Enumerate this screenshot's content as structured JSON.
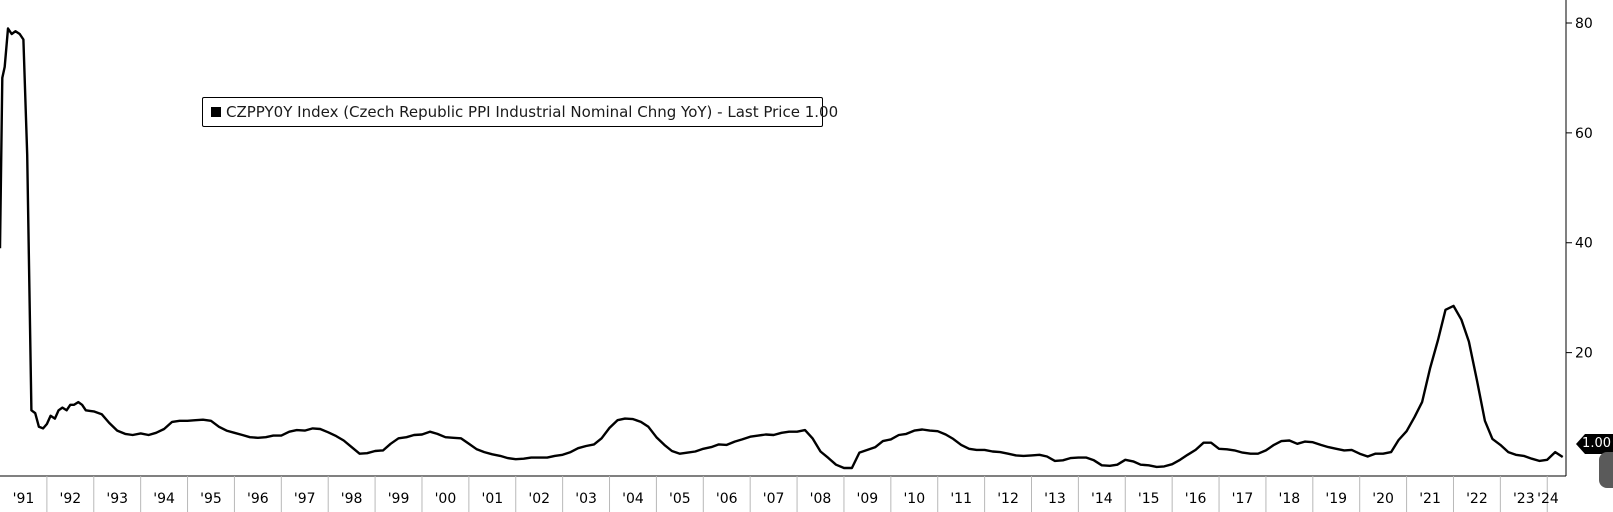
{
  "legend": {
    "text": "CZPPY0Y Index (Czech Republic PPI Industrial Nominal Chng YoY) - Last Price 1.00"
  },
  "last_price_label": "1.00",
  "colors": {
    "line": "#000000",
    "background": "#ffffff",
    "tag": "#000000"
  },
  "chart_data": {
    "type": "line",
    "title": "",
    "xlabel": "",
    "ylabel": "",
    "ylim": [
      -1,
      82
    ],
    "xlim": [
      1991.0,
      2024.4
    ],
    "y_ticks": [
      20,
      40,
      60,
      80
    ],
    "y_axis_side": "right",
    "x_tick_labels": [
      "'91",
      "'92",
      "'93",
      "'94",
      "'95",
      "'96",
      "'97",
      "'98",
      "'99",
      "'00",
      "'01",
      "'02",
      "'03",
      "'04",
      "'05",
      "'06",
      "'07",
      "'08",
      "'09",
      "'10",
      "'11",
      "'12",
      "'13",
      "'14",
      "'15",
      "'16",
      "'17",
      "'18",
      "'19",
      "'20",
      "'21",
      "'22",
      "'23",
      "'24"
    ],
    "grid": false,
    "legend_position": "top-left",
    "series": [
      {
        "name": "CZPPY0Y Index (Czech Republic PPI Industrial Nominal Chng YoY)",
        "x": [
          1991.0,
          1991.05,
          1991.1,
          1991.17,
          1991.25,
          1991.33,
          1991.42,
          1991.5,
          1991.58,
          1991.67,
          1991.75,
          1991.83,
          1991.92,
          1992.0,
          1992.08,
          1992.17,
          1992.25,
          1992.33,
          1992.42,
          1992.5,
          1992.58,
          1992.67,
          1992.75,
          1992.83,
          1992.92,
          1993.0,
          1993.17,
          1993.33,
          1993.5,
          1993.67,
          1993.83,
          1994.0,
          1994.17,
          1994.33,
          1994.5,
          1994.67,
          1994.83,
          1995.0,
          1995.17,
          1995.33,
          1995.5,
          1995.67,
          1995.83,
          1996.0,
          1996.17,
          1996.33,
          1996.5,
          1996.67,
          1996.83,
          1997.0,
          1997.17,
          1997.33,
          1997.5,
          1997.67,
          1997.83,
          1998.0,
          1998.17,
          1998.33,
          1998.5,
          1998.67,
          1998.83,
          1999.0,
          1999.17,
          1999.33,
          1999.5,
          1999.67,
          1999.83,
          2000.0,
          2000.17,
          2000.33,
          2000.5,
          2000.67,
          2000.83,
          2001.0,
          2001.17,
          2001.33,
          2001.5,
          2001.67,
          2001.83,
          2002.0,
          2002.17,
          2002.33,
          2002.5,
          2002.67,
          2002.83,
          2003.0,
          2003.17,
          2003.33,
          2003.5,
          2003.67,
          2003.83,
          2004.0,
          2004.17,
          2004.33,
          2004.5,
          2004.67,
          2004.83,
          2005.0,
          2005.17,
          2005.33,
          2005.5,
          2005.67,
          2005.83,
          2006.0,
          2006.17,
          2006.33,
          2006.5,
          2006.67,
          2006.83,
          2007.0,
          2007.17,
          2007.33,
          2007.5,
          2007.67,
          2007.83,
          2008.0,
          2008.17,
          2008.33,
          2008.5,
          2008.67,
          2008.83,
          2009.0,
          2009.17,
          2009.33,
          2009.5,
          2009.67,
          2009.83,
          2010.0,
          2010.17,
          2010.33,
          2010.5,
          2010.67,
          2010.83,
          2011.0,
          2011.17,
          2011.33,
          2011.5,
          2011.67,
          2011.83,
          2012.0,
          2012.17,
          2012.33,
          2012.5,
          2012.67,
          2012.83,
          2013.0,
          2013.17,
          2013.33,
          2013.5,
          2013.67,
          2013.83,
          2014.0,
          2014.17,
          2014.33,
          2014.5,
          2014.67,
          2014.83,
          2015.0,
          2015.17,
          2015.33,
          2015.5,
          2015.67,
          2015.83,
          2016.0,
          2016.17,
          2016.33,
          2016.5,
          2016.67,
          2016.83,
          2017.0,
          2017.17,
          2017.33,
          2017.5,
          2017.67,
          2017.83,
          2018.0,
          2018.17,
          2018.33,
          2018.5,
          2018.67,
          2018.83,
          2019.0,
          2019.17,
          2019.33,
          2019.5,
          2019.67,
          2019.83,
          2020.0,
          2020.17,
          2020.33,
          2020.5,
          2020.67,
          2020.83,
          2021.0,
          2021.17,
          2021.33,
          2021.5,
          2021.67,
          2021.83,
          2022.0,
          2022.17,
          2022.33,
          2022.5,
          2022.67,
          2022.83,
          2023.0,
          2023.17,
          2023.33,
          2023.5,
          2023.67,
          2023.83,
          2024.0,
          2024.17,
          2024.33
        ],
        "values": [
          39,
          70,
          72,
          79,
          78,
          78.5,
          78,
          77,
          56,
          9.5,
          9,
          6.5,
          6.2,
          7,
          8.5,
          8,
          9.5,
          10,
          9.5,
          10.5,
          10.5,
          11,
          10.5,
          9.5,
          9.4,
          9.3,
          8.8,
          7.2,
          5.8,
          5.2,
          5.0,
          5.3,
          5.0,
          5.4,
          6.1,
          7.4,
          7.6,
          7.6,
          7.7,
          7.8,
          7.6,
          6.5,
          5.8,
          5.4,
          5.0,
          4.6,
          4.5,
          4.6,
          4.9,
          4.9,
          5.6,
          5.9,
          5.8,
          6.2,
          6.1,
          5.5,
          4.8,
          4.0,
          2.8,
          1.6,
          1.7,
          2.1,
          2.2,
          3.4,
          4.4,
          4.6,
          5.0,
          5.1,
          5.6,
          5.2,
          4.6,
          4.5,
          4.4,
          3.4,
          2.4,
          1.9,
          1.5,
          1.2,
          0.8,
          0.6,
          0.7,
          0.9,
          0.9,
          0.9,
          1.2,
          1.4,
          1.9,
          2.6,
          3.0,
          3.3,
          4.4,
          6.3,
          7.7,
          8.0,
          7.9,
          7.4,
          6.5,
          4.6,
          3.2,
          2.1,
          1.6,
          1.8,
          2.0,
          2.5,
          2.8,
          3.3,
          3.2,
          3.8,
          4.2,
          4.7,
          4.9,
          5.1,
          5.0,
          5.4,
          5.6,
          5.6,
          5.9,
          4.4,
          2.0,
          0.8,
          -0.4,
          -1.0,
          -1.0,
          1.8,
          2.3,
          2.8,
          3.9,
          4.2,
          5.0,
          5.2,
          5.8,
          6.0,
          5.8,
          5.7,
          5.1,
          4.3,
          3.2,
          2.5,
          2.3,
          2.3,
          2.0,
          1.9,
          1.6,
          1.3,
          1.2,
          1.3,
          1.4,
          1.1,
          0.3,
          0.4,
          0.8,
          0.9,
          0.9,
          0.4,
          -0.5,
          -0.6,
          -0.4,
          0.5,
          0.2,
          -0.4,
          -0.5,
          -0.8,
          -0.7,
          -0.3,
          0.5,
          1.4,
          2.3,
          3.6,
          3.6,
          2.5,
          2.4,
          2.2,
          1.8,
          1.6,
          1.6,
          2.2,
          3.2,
          3.9,
          4.0,
          3.4,
          3.8,
          3.7,
          3.2,
          2.8,
          2.5,
          2.2,
          2.3,
          1.6,
          1.1,
          1.6,
          1.6,
          1.9,
          4.1,
          5.7,
          8.3,
          11.0,
          17.1,
          22.3,
          27.8,
          28.5,
          26.0,
          22.0,
          15.0,
          7.6,
          4.3,
          3.2,
          1.9,
          1.4,
          1.2,
          0.7,
          0.3,
          0.5,
          1.9,
          1.0
        ]
      }
    ]
  }
}
